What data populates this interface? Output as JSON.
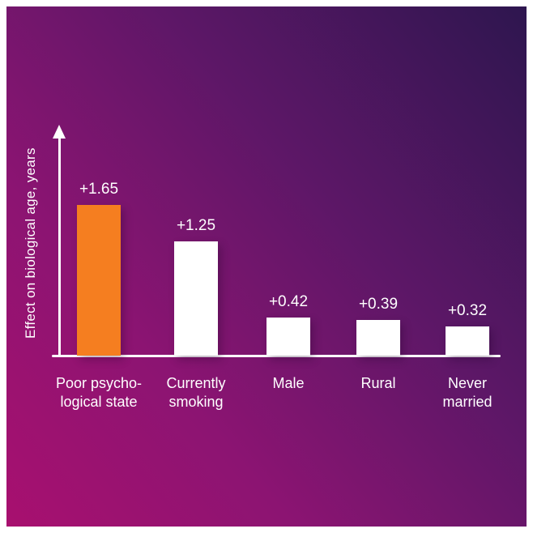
{
  "page": {
    "frame_color": "#ffffff",
    "background_gradient_bottom_left": "#a8106f",
    "background_gradient_top_right": "#2e164f",
    "axis_color": "#ffffff",
    "text_color": "#ffffff",
    "accent_color": "#f57e20"
  },
  "chart_data": {
    "type": "bar",
    "title": "",
    "xlabel": "",
    "ylabel": "Effect on biological age, years",
    "categories": [
      "Poor psycho-\nlogical state",
      "Currently\nsmoking",
      "Male",
      "Rural",
      "Never\nmarried"
    ],
    "values": [
      1.65,
      1.25,
      0.42,
      0.39,
      0.32
    ],
    "value_labels": [
      "+1.65",
      "+1.25",
      "+0.42",
      "+0.39",
      "+0.32"
    ],
    "bar_colors": [
      "#f57e20",
      "#ffffff",
      "#ffffff",
      "#ffffff",
      "#ffffff"
    ],
    "ylim": [
      0,
      2.0
    ],
    "grid": false,
    "legend": false,
    "axis_arrow": true
  }
}
